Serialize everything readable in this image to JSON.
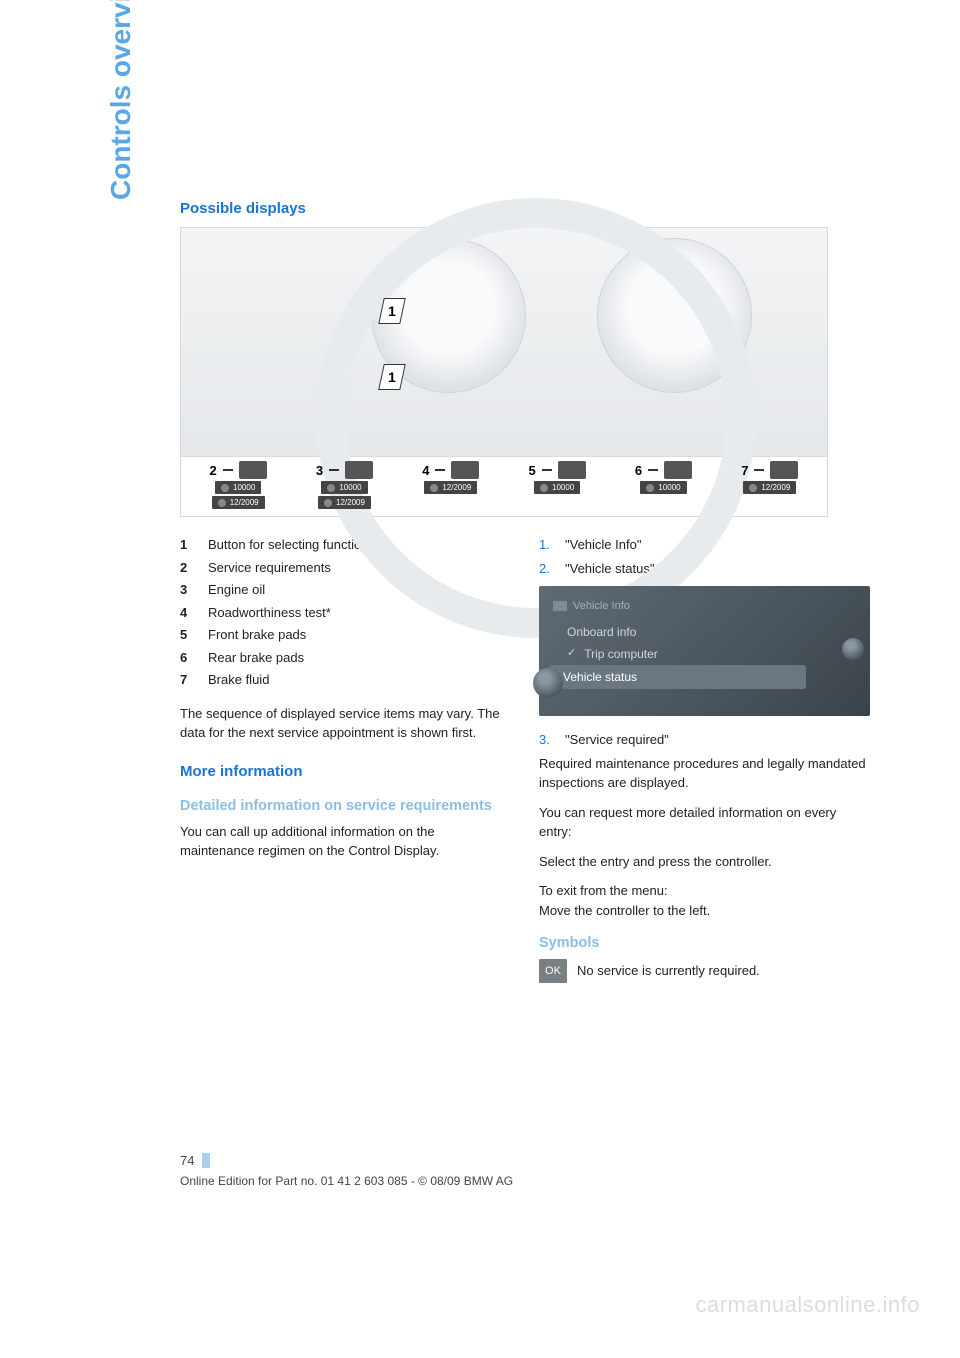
{
  "side_title": "Controls overview",
  "heading_possible": "Possible displays",
  "figure": {
    "callouts": [
      "1",
      "1"
    ],
    "strip": [
      {
        "n": "2",
        "sub": "10000",
        "date": "12/2009"
      },
      {
        "n": "3",
        "sub": "10000",
        "date": "12/2009"
      },
      {
        "n": "4",
        "sub": "",
        "date": "12/2009"
      },
      {
        "n": "5",
        "sub": "10000",
        "date": ""
      },
      {
        "n": "6",
        "sub": "10000",
        "date": ""
      },
      {
        "n": "7",
        "sub": "",
        "date": "12/2009"
      }
    ]
  },
  "legend": [
    {
      "n": "1",
      "t": "Button for selecting functions"
    },
    {
      "n": "2",
      "t": "Service requirements"
    },
    {
      "n": "3",
      "t": "Engine oil"
    },
    {
      "n": "4",
      "t": "Roadworthiness test*"
    },
    {
      "n": "5",
      "t": "Front brake pads"
    },
    {
      "n": "6",
      "t": "Rear brake pads"
    },
    {
      "n": "7",
      "t": "Brake fluid"
    }
  ],
  "seq_para": "The sequence of displayed service items may vary. The data for the next service appointment is shown first.",
  "heading_more": "More information",
  "heading_detailed": "Detailed information on service requirements",
  "detailed_para": "You can call up additional information on the maintenance regimen on the Control Display.",
  "steps12": [
    {
      "n": "1.",
      "t": "\"Vehicle Info\""
    },
    {
      "n": "2.",
      "t": "\"Vehicle status\""
    }
  ],
  "screenshot": {
    "header": "Vehicle Info",
    "row1": "Onboard info",
    "row2": "Trip computer",
    "row3": "Vehicle status"
  },
  "step3": {
    "n": "3.",
    "t": "\"Service required\""
  },
  "req_para": "Required maintenance procedures and legally mandated inspections are displayed.",
  "detail_para": "You can request more detailed information on every entry:",
  "select_para": "Select the entry and press the controller.",
  "exit_line1": "To exit from the menu:",
  "exit_line2": "Move the controller to the left.",
  "heading_symbols": "Symbols",
  "ok_label": "OK",
  "ok_text": "No service is currently required.",
  "page_number": "74",
  "footer_line": "Online Edition for Part no. 01 41 2 603 085 - © 08/09 BMW AG",
  "watermark": "carmanualsonline.info"
}
